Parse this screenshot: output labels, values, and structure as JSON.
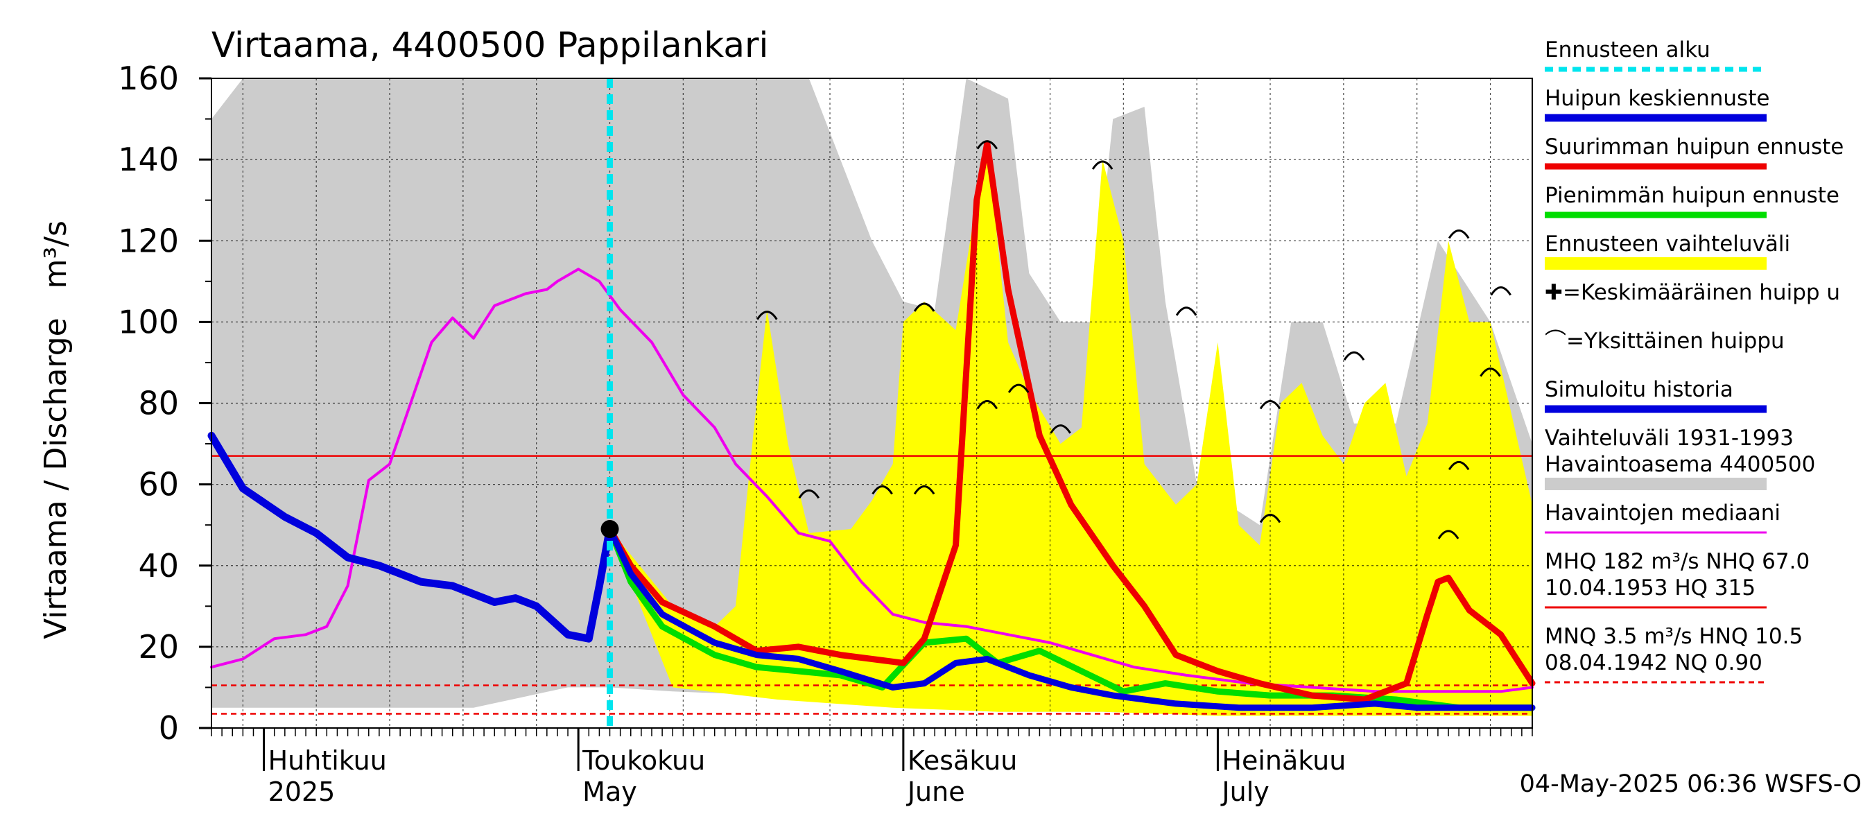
{
  "chart_data": {
    "type": "line",
    "title": "Virtaama, 4400500 Pappilankari",
    "ylabel": "Virtaama / Discharge   m³/s",
    "ylim": [
      0,
      160
    ],
    "yticks": [
      "0",
      "20",
      "40",
      "60",
      "80",
      "100",
      "120",
      "140",
      "160"
    ],
    "xlim": [
      "2025-03-27",
      "2025-07-31"
    ],
    "month_labels": [
      {
        "date": "2025-04-01",
        "fi": "Huhtikuu",
        "en": "2025"
      },
      {
        "date": "2025-05-01",
        "fi": "Toukokuu",
        "en": "May"
      },
      {
        "date": "2025-06-01",
        "fi": "Kesäkuu",
        "en": "June"
      },
      {
        "date": "2025-07-01",
        "fi": "Heinäkuu",
        "en": "July"
      }
    ],
    "forecast_start": "2025-05-04",
    "legend": [
      {
        "label": "Ennusteen alku",
        "color": "#00e5ee",
        "style": "dashed"
      },
      {
        "label": "Huipun keskiennuste",
        "color": "#0000dd",
        "style": "solid"
      },
      {
        "label": "Suurimman huipun ennuste",
        "color": "#ee0000",
        "style": "solid"
      },
      {
        "label": "Pienimmän huipun ennuste",
        "color": "#00dd00",
        "style": "solid"
      },
      {
        "label": "Ennusteen vaihteluväli",
        "color": "#ffff00",
        "style": "band"
      },
      {
        "label": "✚=Keskimääräinen huipp u",
        "color": "#000000",
        "style": "none"
      },
      {
        "label": "⌒=Yksittäinen huippu",
        "color": "#000000",
        "style": "none"
      },
      {
        "label": "Simuloitu historia",
        "color": "#0000dd",
        "style": "solid"
      },
      {
        "label": "Vaihteluväli 1931-1993  Havaintoasema 4400500",
        "color": "#cccccc",
        "style": "band"
      },
      {
        "label": "Havaintojen mediaani",
        "color": "#ee00ee",
        "style": "solid"
      },
      {
        "label": "MHQ  182 m³/s NHQ 67.0 10.04.1953 HQ  315",
        "color": "#ee0000",
        "style": "solid"
      },
      {
        "label": "MNQ  3.5 m³/s HNQ 10.5 08.04.1942 NQ 0.90",
        "color": "#ee0000",
        "style": "dashed"
      }
    ],
    "reference_lines": {
      "NHQ": 67.0,
      "HNQ": 10.5,
      "MNQ": 3.5
    },
    "series": [
      {
        "name": "Simuloitu historia",
        "color": "#0000dd",
        "points": [
          [
            "2025-03-27",
            72
          ],
          [
            "2025-03-30",
            59
          ],
          [
            "2025-04-03",
            52
          ],
          [
            "2025-04-06",
            48
          ],
          [
            "2025-04-09",
            42
          ],
          [
            "2025-04-12",
            40
          ],
          [
            "2025-04-16",
            36
          ],
          [
            "2025-04-19",
            35
          ],
          [
            "2025-04-23",
            31
          ],
          [
            "2025-04-25",
            32
          ],
          [
            "2025-04-27",
            30
          ],
          [
            "2025-04-30",
            23
          ],
          [
            "2025-05-02",
            22
          ],
          [
            "2025-05-03",
            35
          ],
          [
            "2025-05-04",
            49
          ]
        ]
      },
      {
        "name": "Huipun keskiennuste",
        "color": "#0000dd",
        "points": [
          [
            "2025-05-04",
            49
          ],
          [
            "2025-05-06",
            38
          ],
          [
            "2025-05-09",
            28
          ],
          [
            "2025-05-14",
            21
          ],
          [
            "2025-05-18",
            18
          ],
          [
            "2025-05-22",
            17
          ],
          [
            "2025-05-26",
            14
          ],
          [
            "2025-05-31",
            10
          ],
          [
            "2025-06-03",
            11
          ],
          [
            "2025-06-06",
            16
          ],
          [
            "2025-06-09",
            17
          ],
          [
            "2025-06-13",
            13
          ],
          [
            "2025-06-17",
            10
          ],
          [
            "2025-06-21",
            8
          ],
          [
            "2025-06-27",
            6
          ],
          [
            "2025-07-03",
            5
          ],
          [
            "2025-07-10",
            5
          ],
          [
            "2025-07-16",
            6
          ],
          [
            "2025-07-20",
            5
          ],
          [
            "2025-07-26",
            5
          ],
          [
            "2025-07-31",
            5
          ]
        ]
      },
      {
        "name": "Suurimman huipun ennuste",
        "color": "#ee0000",
        "points": [
          [
            "2025-05-04",
            49
          ],
          [
            "2025-05-06",
            40
          ],
          [
            "2025-05-09",
            31
          ],
          [
            "2025-05-14",
            25
          ],
          [
            "2025-05-18",
            19
          ],
          [
            "2025-05-22",
            20
          ],
          [
            "2025-05-26",
            18
          ],
          [
            "2025-06-01",
            16
          ],
          [
            "2025-06-03",
            22
          ],
          [
            "2025-06-06",
            45
          ],
          [
            "2025-06-08",
            130
          ],
          [
            "2025-06-09",
            144
          ],
          [
            "2025-06-11",
            108
          ],
          [
            "2025-06-14",
            72
          ],
          [
            "2025-06-17",
            55
          ],
          [
            "2025-06-21",
            40
          ],
          [
            "2025-06-24",
            30
          ],
          [
            "2025-06-27",
            18
          ],
          [
            "2025-07-01",
            14
          ],
          [
            "2025-07-05",
            11
          ],
          [
            "2025-07-10",
            8
          ],
          [
            "2025-07-15",
            7
          ],
          [
            "2025-07-19",
            11
          ],
          [
            "2025-07-21",
            28
          ],
          [
            "2025-07-22",
            36
          ],
          [
            "2025-07-23",
            37
          ],
          [
            "2025-07-25",
            29
          ],
          [
            "2025-07-28",
            23
          ],
          [
            "2025-07-31",
            11
          ]
        ]
      },
      {
        "name": "Pienimmän huipun ennuste",
        "color": "#00dd00",
        "points": [
          [
            "2025-05-04",
            49
          ],
          [
            "2025-05-06",
            36
          ],
          [
            "2025-05-09",
            25
          ],
          [
            "2025-05-14",
            18
          ],
          [
            "2025-05-18",
            15
          ],
          [
            "2025-05-22",
            14
          ],
          [
            "2025-05-26",
            13
          ],
          [
            "2025-05-30",
            10
          ],
          [
            "2025-06-03",
            21
          ],
          [
            "2025-06-07",
            22
          ],
          [
            "2025-06-10",
            16
          ],
          [
            "2025-06-14",
            19
          ],
          [
            "2025-06-18",
            14
          ],
          [
            "2025-06-22",
            9
          ],
          [
            "2025-06-26",
            11
          ],
          [
            "2025-07-01",
            9
          ],
          [
            "2025-07-06",
            8
          ],
          [
            "2025-07-12",
            8
          ],
          [
            "2025-07-18",
            7
          ],
          [
            "2025-07-24",
            5
          ],
          [
            "2025-07-31",
            5
          ]
        ]
      },
      {
        "name": "Havaintojen mediaani",
        "color": "#ee00ee",
        "points": [
          [
            "2025-03-27",
            15
          ],
          [
            "2025-03-30",
            17
          ],
          [
            "2025-04-02",
            22
          ],
          [
            "2025-04-05",
            23
          ],
          [
            "2025-04-07",
            25
          ],
          [
            "2025-04-09",
            35
          ],
          [
            "2025-04-11",
            61
          ],
          [
            "2025-04-13",
            65
          ],
          [
            "2025-04-15",
            80
          ],
          [
            "2025-04-17",
            95
          ],
          [
            "2025-04-19",
            101
          ],
          [
            "2025-04-21",
            96
          ],
          [
            "2025-04-23",
            104
          ],
          [
            "2025-04-26",
            107
          ],
          [
            "2025-04-28",
            108
          ],
          [
            "2025-04-29",
            110
          ],
          [
            "2025-05-01",
            113
          ],
          [
            "2025-05-03",
            110
          ],
          [
            "2025-05-05",
            103
          ],
          [
            "2025-05-08",
            95
          ],
          [
            "2025-05-11",
            82
          ],
          [
            "2025-05-14",
            74
          ],
          [
            "2025-05-16",
            65
          ],
          [
            "2025-05-19",
            57
          ],
          [
            "2025-05-22",
            48
          ],
          [
            "2025-05-25",
            46
          ],
          [
            "2025-05-28",
            36
          ],
          [
            "2025-05-31",
            28
          ],
          [
            "2025-06-03",
            26
          ],
          [
            "2025-06-07",
            25
          ],
          [
            "2025-06-11",
            23
          ],
          [
            "2025-06-15",
            21
          ],
          [
            "2025-06-19",
            18
          ],
          [
            "2025-06-23",
            15
          ],
          [
            "2025-06-28",
            13
          ],
          [
            "2025-07-04",
            11
          ],
          [
            "2025-07-10",
            10
          ],
          [
            "2025-07-16",
            9
          ],
          [
            "2025-07-22",
            9
          ],
          [
            "2025-07-28",
            9
          ],
          [
            "2025-07-31",
            10
          ]
        ]
      },
      {
        "name": "Vaihteluväli 1931-1993 yläraja",
        "color": "#cccccc",
        "points": [
          [
            "2025-03-27",
            150
          ],
          [
            "2025-03-30",
            160
          ],
          [
            "2025-05-21",
            160
          ],
          [
            "2025-05-23",
            160
          ],
          [
            "2025-05-29",
            120
          ],
          [
            "2025-06-01",
            105
          ],
          [
            "2025-06-04",
            103
          ],
          [
            "2025-06-07",
            160
          ],
          [
            "2025-06-11",
            155
          ],
          [
            "2025-06-13",
            112
          ],
          [
            "2025-06-16",
            100
          ],
          [
            "2025-06-19",
            100
          ],
          [
            "2025-06-21",
            150
          ],
          [
            "2025-06-24",
            153
          ],
          [
            "2025-06-26",
            105
          ],
          [
            "2025-06-29",
            60
          ],
          [
            "2025-07-02",
            55
          ],
          [
            "2025-07-05",
            50
          ],
          [
            "2025-07-08",
            100
          ],
          [
            "2025-07-11",
            100
          ],
          [
            "2025-07-14",
            75
          ],
          [
            "2025-07-18",
            75
          ],
          [
            "2025-07-22",
            120
          ],
          [
            "2025-07-27",
            100
          ],
          [
            "2025-07-31",
            70
          ]
        ]
      },
      {
        "name": "Vaihteluväli 1931-1993 alaraja",
        "color": "#cccccc",
        "points": [
          [
            "2025-03-27",
            5
          ],
          [
            "2025-04-21",
            5
          ],
          [
            "2025-04-30",
            10
          ],
          [
            "2025-05-04",
            10
          ],
          [
            "2025-05-10",
            9
          ],
          [
            "2025-05-20",
            8
          ],
          [
            "2025-05-31",
            6
          ],
          [
            "2025-06-10",
            4
          ],
          [
            "2025-06-20",
            4
          ],
          [
            "2025-07-01",
            3
          ],
          [
            "2025-07-31",
            3
          ]
        ]
      },
      {
        "name": "Ennusteen vaihteluväli yläraja",
        "color": "#ffff00",
        "points": [
          [
            "2025-05-04",
            49
          ],
          [
            "2025-05-10",
            30
          ],
          [
            "2025-05-14",
            25
          ],
          [
            "2025-05-16",
            30
          ],
          [
            "2025-05-18",
            80
          ],
          [
            "2025-05-19",
            103
          ],
          [
            "2025-05-21",
            70
          ],
          [
            "2025-05-23",
            48
          ],
          [
            "2025-05-27",
            49
          ],
          [
            "2025-05-29",
            56
          ],
          [
            "2025-05-31",
            65
          ],
          [
            "2025-06-01",
            100
          ],
          [
            "2025-06-03",
            105
          ],
          [
            "2025-06-06",
            98
          ],
          [
            "2025-06-08",
            130
          ],
          [
            "2025-06-09",
            144
          ],
          [
            "2025-06-11",
            95
          ],
          [
            "2025-06-13",
            83
          ],
          [
            "2025-06-16",
            70
          ],
          [
            "2025-06-18",
            74
          ],
          [
            "2025-06-20",
            140
          ],
          [
            "2025-06-22",
            120
          ],
          [
            "2025-06-24",
            65
          ],
          [
            "2025-06-27",
            55
          ],
          [
            "2025-06-29",
            60
          ],
          [
            "2025-07-01",
            95
          ],
          [
            "2025-07-03",
            50
          ],
          [
            "2025-07-05",
            45
          ],
          [
            "2025-07-07",
            80
          ],
          [
            "2025-07-09",
            85
          ],
          [
            "2025-07-11",
            72
          ],
          [
            "2025-07-13",
            65
          ],
          [
            "2025-07-15",
            80
          ],
          [
            "2025-07-17",
            85
          ],
          [
            "2025-07-19",
            62
          ],
          [
            "2025-07-21",
            75
          ],
          [
            "2025-07-23",
            120
          ],
          [
            "2025-07-25",
            100
          ],
          [
            "2025-07-27",
            100
          ],
          [
            "2025-07-31",
            55
          ]
        ]
      },
      {
        "name": "Ennusteen vaihteluväli alaraja",
        "color": "#ffff00",
        "points": [
          [
            "2025-05-04",
            49
          ],
          [
            "2025-05-10",
            10
          ],
          [
            "2025-05-20",
            7
          ],
          [
            "2025-05-31",
            5
          ],
          [
            "2025-06-10",
            4
          ],
          [
            "2025-06-20",
            4
          ],
          [
            "2025-07-01",
            3
          ],
          [
            "2025-07-31",
            3
          ]
        ]
      }
    ],
    "single_peaks": [
      [
        "2025-05-19",
        102
      ],
      [
        "2025-05-23",
        58
      ],
      [
        "2025-05-30",
        59
      ],
      [
        "2025-06-03",
        59
      ],
      [
        "2025-06-03",
        104
      ],
      [
        "2025-06-09",
        80
      ],
      [
        "2025-06-09",
        144
      ],
      [
        "2025-06-12",
        84
      ],
      [
        "2025-06-16",
        74
      ],
      [
        "2025-06-20",
        139
      ],
      [
        "2025-06-28",
        103
      ],
      [
        "2025-07-06",
        80
      ],
      [
        "2025-07-06",
        52
      ],
      [
        "2025-07-14",
        92
      ],
      [
        "2025-07-23",
        48
      ],
      [
        "2025-07-24",
        122
      ],
      [
        "2025-07-24",
        65
      ],
      [
        "2025-07-27",
        88
      ],
      [
        "2025-07-28",
        108
      ]
    ],
    "current_point": [
      "2025-05-04",
      49
    ],
    "footer": "04-May-2025 06:36 WSFS-O"
  }
}
